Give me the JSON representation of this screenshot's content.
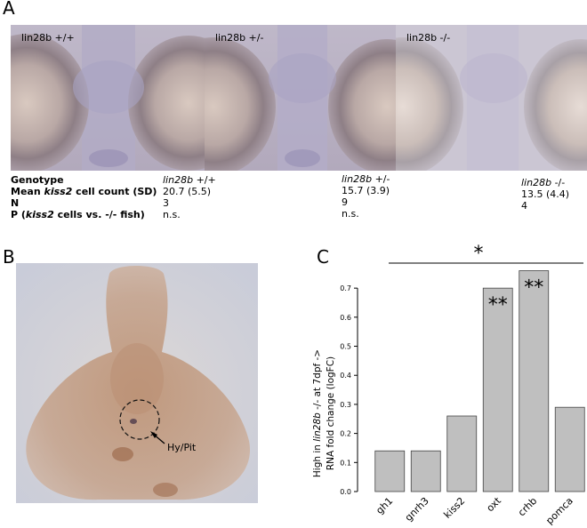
{
  "panel_a": {
    "letter": "A",
    "images": [
      {
        "label": "lin28b +/+"
      },
      {
        "label": "lin28b +/-"
      },
      {
        "label": "lin28b -/-"
      }
    ],
    "table": {
      "row_labels": {
        "genotype": "Genotype",
        "mean_prefix": "Mean ",
        "mean_gene": "kiss2",
        "mean_suffix": " cell count (SD)",
        "n": "N",
        "p_prefix": "P (",
        "p_gene": "kiss2",
        "p_suffix": " cells vs. -/- fish)"
      },
      "columns": [
        {
          "gene": "lin28b",
          "genotype": " +/+",
          "mean": "20.7 (5.5)",
          "n": "3",
          "p": "n.s."
        },
        {
          "gene": "lin28b",
          "genotype": " +/-",
          "mean": "15.7 (3.9)",
          "n": "9",
          "p": "n.s."
        },
        {
          "gene": "lin28b",
          "genotype": " -/-",
          "mean": "13.5 (4.4)",
          "n": "4",
          "p": ""
        }
      ]
    }
  },
  "panel_b": {
    "letter": "B",
    "annotation": "Hy/Pit"
  },
  "panel_c": {
    "letter": "C",
    "significance_overall": "*",
    "ylabel_line1_prefix": "High in ",
    "ylabel_line1_gene": "lin28b",
    "ylabel_line1_suffix": " -/- at 7dpf ->",
    "ylabel_line2": "RNA fold change (logFC)"
  },
  "chart_data": {
    "type": "bar",
    "categories": [
      "gh1",
      "gnrh3",
      "kiss2",
      "oxt",
      "crhb",
      "pomca"
    ],
    "values": [
      0.14,
      0.14,
      0.26,
      0.7,
      0.76,
      0.29
    ],
    "bar_labels": [
      "",
      "",
      "",
      "**",
      "**",
      ""
    ],
    "ylim": [
      0,
      0.78
    ],
    "yticks": [
      0.0,
      0.1,
      0.2,
      0.3,
      0.4,
      0.5,
      0.6,
      0.7
    ],
    "ytick_labels": [
      "0.0",
      "0.1",
      "0.2",
      "0.3",
      "0.4",
      "0.5",
      "0.6",
      "0.7"
    ],
    "bar_color": "#bfbfbf",
    "grid": false,
    "legend": "none"
  }
}
